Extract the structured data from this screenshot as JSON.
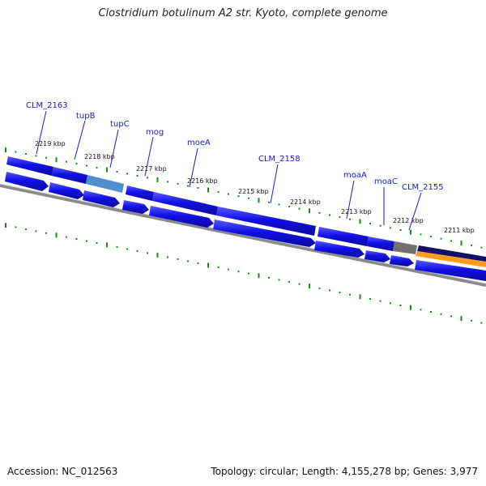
{
  "title": "Clostridium botulinum A2 str. Kyoto, complete genome",
  "footer": {
    "accession": "Accession: NC_012563",
    "summary": "Topology: circular; Length: 4,155,278 bp; Genes: 3,977"
  },
  "colors": {
    "gene": "#1010e6",
    "gene_light": "#4f8fd0",
    "gene_grey": "#707070",
    "gene_orange": "#ff9a20",
    "gene_navy": "#10106a",
    "tick": "#1b8a1b",
    "backbone": "#8a8a8a",
    "label": "#1a1ac8"
  },
  "kbp_labels": [
    "2219 kbp",
    "2218 kbp",
    "2217 kbp",
    "2216 kbp",
    "2215 kbp",
    "2214 kbp",
    "2213 kbp",
    "2212 kbp",
    "2211 kbp"
  ],
  "gene_labels": [
    "CLM_2163",
    "tupB",
    "tupC",
    "mog",
    "moeA",
    "CLM_2158",
    "moaA",
    "moaC",
    "CLM_2155"
  ]
}
